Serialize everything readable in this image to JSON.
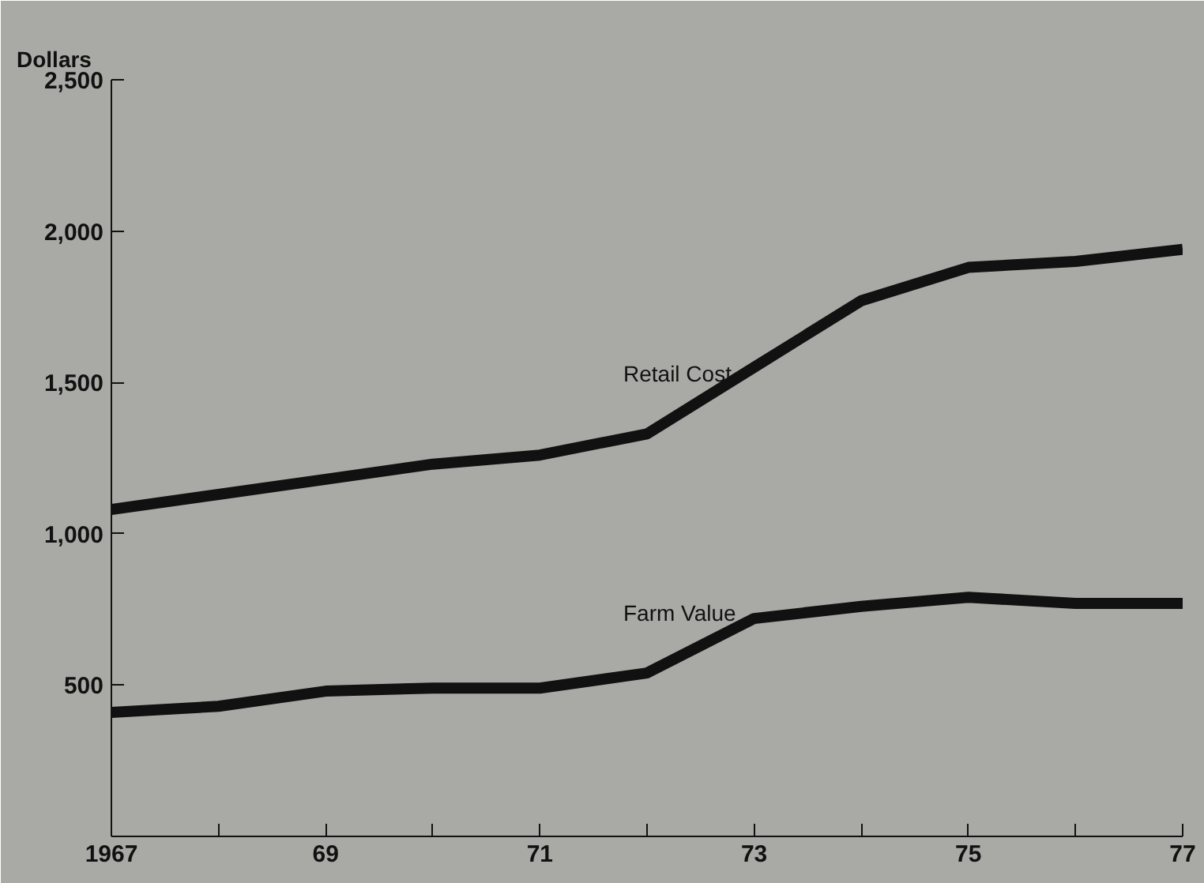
{
  "chart_data": {
    "type": "line",
    "ylabel": "Dollars",
    "x": [
      1967,
      1968,
      1969,
      1970,
      1971,
      1972,
      1973,
      1974,
      1975,
      1976,
      1977
    ],
    "series": [
      {
        "name": "Retail Cost",
        "color": "#111111",
        "values": [
          1080,
          1130,
          1180,
          1230,
          1260,
          1330,
          1550,
          1770,
          1880,
          1900,
          1940
        ]
      },
      {
        "name": "Farm Value",
        "color": "#111111",
        "values": [
          410,
          430,
          480,
          490,
          490,
          540,
          720,
          760,
          790,
          770,
          770
        ]
      }
    ],
    "xlim": [
      1967,
      1977
    ],
    "ylim": [
      0,
      2500
    ],
    "xticks": [
      1967,
      {
        "value": 1968,
        "label": null
      },
      {
        "value": 1969,
        "label": "69"
      },
      {
        "value": 1970,
        "label": null
      },
      {
        "value": 1971,
        "label": "71"
      },
      {
        "value": 1972,
        "label": null
      },
      {
        "value": 1973,
        "label": "73"
      },
      {
        "value": 1974,
        "label": null
      },
      {
        "value": 1975,
        "label": "75"
      },
      {
        "value": 1976,
        "label": null
      },
      {
        "value": 1977,
        "label": "77"
      }
    ],
    "yticks": [
      {
        "value": 500,
        "label": "500"
      },
      {
        "value": 1000,
        "label": "1,000"
      },
      {
        "value": 1500,
        "label": "1,500"
      },
      {
        "value": 2000,
        "label": "2,000"
      },
      {
        "value": 2500,
        "label": "2,500"
      }
    ],
    "grid": false,
    "marker": "none",
    "line_style": "solid"
  }
}
